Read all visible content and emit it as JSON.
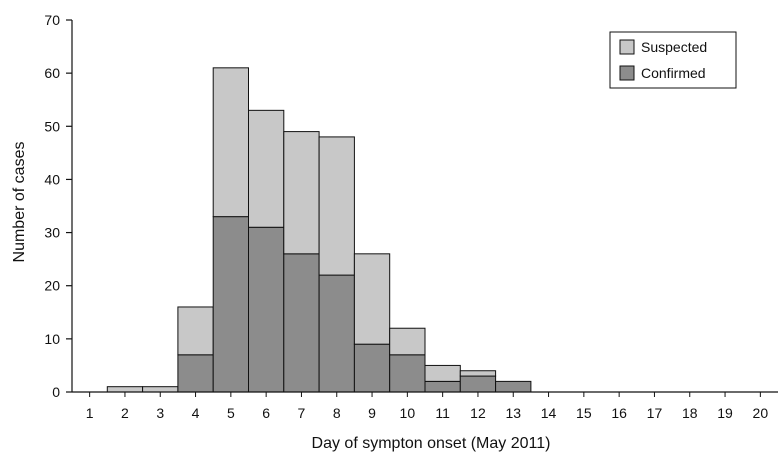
{
  "chart_data": {
    "type": "bar",
    "stacked": true,
    "title": "",
    "xlabel": "Day of sympton onset (May 2011)",
    "ylabel": "Number of cases",
    "categories": [
      "1",
      "2",
      "3",
      "4",
      "5",
      "6",
      "7",
      "8",
      "9",
      "10",
      "11",
      "12",
      "13",
      "14",
      "15",
      "16",
      "17",
      "18",
      "19",
      "20"
    ],
    "series": [
      {
        "name": "Confirmed",
        "color": "#8c8c8c",
        "values": [
          0,
          0,
          0,
          7,
          33,
          31,
          26,
          22,
          9,
          7,
          2,
          3,
          2,
          0,
          0,
          0,
          0,
          0,
          0,
          0
        ]
      },
      {
        "name": "Suspected",
        "color": "#c8c8c8",
        "values": [
          0,
          1,
          1,
          9,
          28,
          22,
          23,
          26,
          17,
          5,
          3,
          1,
          0,
          0,
          0,
          0,
          0,
          0,
          0,
          0
        ]
      }
    ],
    "ylim": [
      0,
      70
    ],
    "yticks": [
      0,
      10,
      20,
      30,
      40,
      50,
      60,
      70
    ],
    "grid": false,
    "legend_position": "top-right"
  }
}
